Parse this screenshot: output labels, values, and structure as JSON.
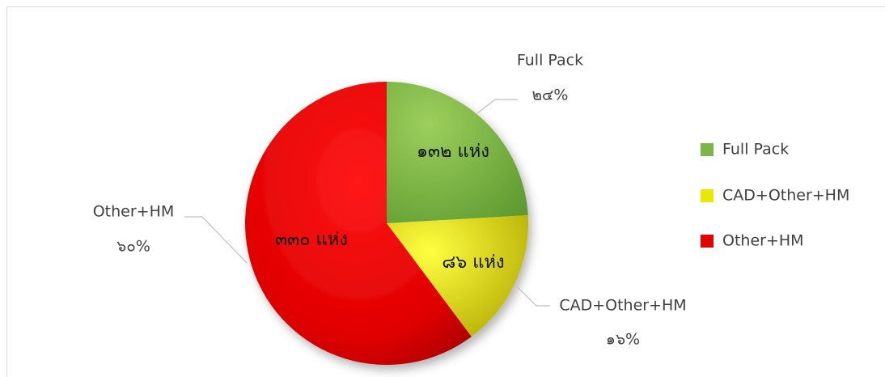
{
  "chart_data": {
    "type": "pie",
    "categories": [
      "Full Pack",
      "CAD+Other+HM",
      "Other+HM"
    ],
    "values": [
      132,
      86,
      330
    ],
    "value_labels": [
      "๑๓๒ แห่ง",
      "๘๖ แห่ง",
      "๓๓๐ แห่ง"
    ],
    "percents": [
      24,
      16,
      60
    ],
    "percent_labels": [
      "๒๔%",
      "๑๖%",
      "๖๐%"
    ],
    "colors": [
      "#7ab648",
      "#e8e800",
      "#e00000"
    ],
    "legend": "right"
  }
}
